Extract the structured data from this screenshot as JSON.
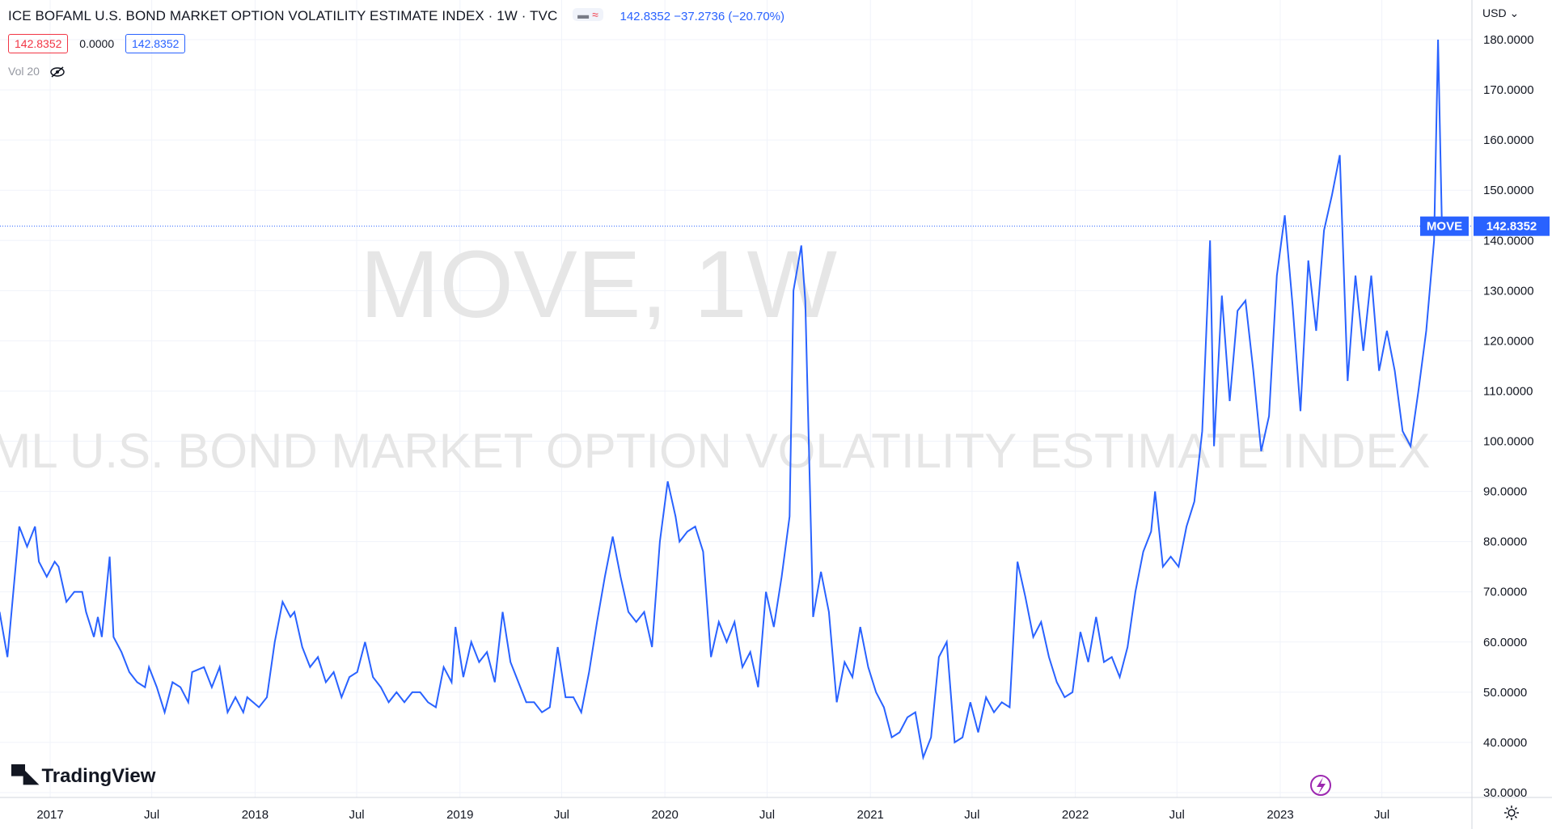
{
  "legend": {
    "title": "ICE BOFAML U.S. BOND MARKET OPTION VOLATILITY ESTIMATE INDEX · 1W · TVC",
    "change": "142.8352  −37.2736 (−20.70%)",
    "badge_red": "142.8352",
    "badge_zero": "0.0000",
    "badge_blue": "142.8352",
    "volume_label": "Vol 20"
  },
  "currency": "USD",
  "symbol": "MOVE",
  "last_price": "142.8352",
  "watermark": {
    "line1": "MOVE, 1W",
    "line2": "ICE BOFAML U.S. BOND MARKET OPTION VOLATILITY ESTIMATE INDEX"
  },
  "brand": "TradingView",
  "colors": {
    "line": "#2962ff",
    "badge_red": "#f23645",
    "grid": "#f0f3fa",
    "axis_text": "#131722"
  },
  "chart_data": {
    "type": "line",
    "title": "",
    "xlabel": "",
    "ylabel": "",
    "ylim": [
      30,
      183
    ],
    "grid": true,
    "y_ticks": [
      "180.0000",
      "170.0000",
      "160.0000",
      "150.0000",
      "140.0000",
      "130.0000",
      "120.0000",
      "110.0000",
      "100.0000",
      "90.0000",
      "80.0000",
      "70.0000",
      "60.0000",
      "50.0000",
      "40.0000",
      "30.0000"
    ],
    "x_ticks": [
      {
        "label": "2017",
        "date": "2017-01-01"
      },
      {
        "label": "Jul",
        "date": "2017-07-01"
      },
      {
        "label": "2018",
        "date": "2018-01-01"
      },
      {
        "label": "Jul",
        "date": "2018-07-01"
      },
      {
        "label": "2019",
        "date": "2019-01-01"
      },
      {
        "label": "Jul",
        "date": "2019-07-01"
      },
      {
        "label": "2020",
        "date": "2020-01-01"
      },
      {
        "label": "Jul",
        "date": "2020-07-01"
      },
      {
        "label": "2021",
        "date": "2021-01-01"
      },
      {
        "label": "Jul",
        "date": "2021-07-01"
      },
      {
        "label": "2022",
        "date": "2022-01-01"
      },
      {
        "label": "Jul",
        "date": "2022-07-01"
      },
      {
        "label": "2023",
        "date": "2023-01-01"
      },
      {
        "label": "Jul",
        "date": "2023-07-01"
      }
    ],
    "series": [
      {
        "color": "#2962ff",
        "points": [
          [
            "2016-10-03",
            66
          ],
          [
            "2016-10-17",
            57
          ],
          [
            "2016-11-07",
            83
          ],
          [
            "2016-11-21",
            79
          ],
          [
            "2016-12-05",
            83
          ],
          [
            "2016-12-12",
            76
          ],
          [
            "2016-12-26",
            73
          ],
          [
            "2017-01-09",
            76
          ],
          [
            "2017-01-16",
            75
          ],
          [
            "2017-01-30",
            68
          ],
          [
            "2017-02-13",
            70
          ],
          [
            "2017-02-27",
            70
          ],
          [
            "2017-03-06",
            66
          ],
          [
            "2017-03-20",
            61
          ],
          [
            "2017-03-27",
            65
          ],
          [
            "2017-04-03",
            61
          ],
          [
            "2017-04-17",
            77
          ],
          [
            "2017-04-24",
            61
          ],
          [
            "2017-05-08",
            58
          ],
          [
            "2017-05-22",
            54
          ],
          [
            "2017-06-05",
            52
          ],
          [
            "2017-06-19",
            51
          ],
          [
            "2017-06-26",
            55
          ],
          [
            "2017-07-10",
            51
          ],
          [
            "2017-07-24",
            46
          ],
          [
            "2017-08-07",
            52
          ],
          [
            "2017-08-21",
            51
          ],
          [
            "2017-09-04",
            48
          ],
          [
            "2017-09-11",
            54
          ],
          [
            "2017-10-02",
            55
          ],
          [
            "2017-10-16",
            51
          ],
          [
            "2017-10-30",
            55
          ],
          [
            "2017-11-13",
            46
          ],
          [
            "2017-11-27",
            49
          ],
          [
            "2017-12-11",
            46
          ],
          [
            "2017-12-18",
            49
          ],
          [
            "2018-01-08",
            47
          ],
          [
            "2018-01-22",
            49
          ],
          [
            "2018-02-05",
            60
          ],
          [
            "2018-02-19",
            68
          ],
          [
            "2018-03-05",
            65
          ],
          [
            "2018-03-12",
            66
          ],
          [
            "2018-03-26",
            59
          ],
          [
            "2018-04-09",
            55
          ],
          [
            "2018-04-23",
            57
          ],
          [
            "2018-05-07",
            52
          ],
          [
            "2018-05-21",
            54
          ],
          [
            "2018-06-04",
            49
          ],
          [
            "2018-06-18",
            53
          ],
          [
            "2018-07-02",
            54
          ],
          [
            "2018-07-16",
            60
          ],
          [
            "2018-07-30",
            53
          ],
          [
            "2018-08-13",
            51
          ],
          [
            "2018-08-27",
            48
          ],
          [
            "2018-09-10",
            50
          ],
          [
            "2018-09-24",
            48
          ],
          [
            "2018-10-08",
            50
          ],
          [
            "2018-10-22",
            50
          ],
          [
            "2018-11-05",
            48
          ],
          [
            "2018-11-19",
            47
          ],
          [
            "2018-12-03",
            55
          ],
          [
            "2018-12-17",
            52
          ],
          [
            "2018-12-24",
            63
          ],
          [
            "2019-01-07",
            53
          ],
          [
            "2019-01-21",
            60
          ],
          [
            "2019-02-04",
            56
          ],
          [
            "2019-02-18",
            58
          ],
          [
            "2019-03-04",
            52
          ],
          [
            "2019-03-18",
            66
          ],
          [
            "2019-04-01",
            56
          ],
          [
            "2019-04-15",
            52
          ],
          [
            "2019-04-29",
            48
          ],
          [
            "2019-05-13",
            48
          ],
          [
            "2019-05-27",
            46
          ],
          [
            "2019-06-10",
            47
          ],
          [
            "2019-06-24",
            59
          ],
          [
            "2019-07-08",
            49
          ],
          [
            "2019-07-22",
            49
          ],
          [
            "2019-08-05",
            46
          ],
          [
            "2019-08-19",
            54
          ],
          [
            "2019-09-02",
            64
          ],
          [
            "2019-09-16",
            73
          ],
          [
            "2019-09-30",
            81
          ],
          [
            "2019-10-14",
            73
          ],
          [
            "2019-10-28",
            66
          ],
          [
            "2019-11-11",
            64
          ],
          [
            "2019-11-25",
            66
          ],
          [
            "2019-12-09",
            59
          ],
          [
            "2019-12-23",
            80
          ],
          [
            "2020-01-06",
            92
          ],
          [
            "2020-01-20",
            85
          ],
          [
            "2020-01-27",
            80
          ],
          [
            "2020-02-10",
            82
          ],
          [
            "2020-02-24",
            83
          ],
          [
            "2020-03-09",
            78
          ],
          [
            "2020-03-23",
            57
          ],
          [
            "2020-04-06",
            64
          ],
          [
            "2020-04-20",
            60
          ],
          [
            "2020-05-04",
            64
          ],
          [
            "2020-05-18",
            55
          ],
          [
            "2020-06-01",
            58
          ],
          [
            "2020-06-15",
            51
          ],
          [
            "2020-06-29",
            70
          ],
          [
            "2020-07-13",
            63
          ],
          [
            "2020-07-27",
            73
          ],
          [
            "2020-08-10",
            85
          ],
          [
            "2020-08-17",
            130
          ],
          [
            "2020-08-31",
            139
          ],
          [
            "2020-09-07",
            128
          ],
          [
            "2020-09-21",
            65
          ],
          [
            "2020-10-05",
            74
          ],
          [
            "2020-10-19",
            66
          ],
          [
            "2020-11-02",
            48
          ],
          [
            "2020-11-16",
            56
          ],
          [
            "2020-11-30",
            53
          ],
          [
            "2020-12-14",
            63
          ],
          [
            "2020-12-28",
            55
          ],
          [
            "2021-01-11",
            50
          ],
          [
            "2021-01-25",
            47
          ],
          [
            "2021-02-08",
            41
          ],
          [
            "2021-02-22",
            42
          ],
          [
            "2021-03-08",
            45
          ],
          [
            "2021-03-22",
            46
          ],
          [
            "2021-04-05",
            37
          ],
          [
            "2021-04-19",
            41
          ],
          [
            "2021-05-03",
            57
          ],
          [
            "2021-05-17",
            60
          ],
          [
            "2021-05-31",
            40
          ],
          [
            "2021-06-14",
            41
          ],
          [
            "2021-06-28",
            48
          ],
          [
            "2021-07-12",
            42
          ],
          [
            "2021-07-26",
            49
          ],
          [
            "2021-08-09",
            46
          ],
          [
            "2021-08-23",
            48
          ],
          [
            "2021-09-06",
            47
          ],
          [
            "2021-09-20",
            76
          ],
          [
            "2021-10-04",
            69
          ],
          [
            "2021-10-18",
            61
          ],
          [
            "2021-11-01",
            64
          ],
          [
            "2021-11-15",
            57
          ],
          [
            "2021-11-29",
            52
          ],
          [
            "2021-12-13",
            49
          ],
          [
            "2021-12-27",
            50
          ],
          [
            "2022-01-10",
            62
          ],
          [
            "2022-01-24",
            56
          ],
          [
            "2022-02-07",
            65
          ],
          [
            "2022-02-21",
            56
          ],
          [
            "2022-03-07",
            57
          ],
          [
            "2022-03-21",
            53
          ],
          [
            "2022-04-04",
            59
          ],
          [
            "2022-04-18",
            70
          ],
          [
            "2022-05-02",
            78
          ],
          [
            "2022-05-16",
            82
          ],
          [
            "2022-05-23",
            90
          ],
          [
            "2022-06-06",
            75
          ],
          [
            "2022-06-20",
            77
          ],
          [
            "2022-07-04",
            75
          ],
          [
            "2022-07-18",
            83
          ],
          [
            "2022-08-01",
            88
          ],
          [
            "2022-08-15",
            102
          ],
          [
            "2022-08-29",
            140
          ],
          [
            "2022-09-05",
            99
          ],
          [
            "2022-09-19",
            129
          ],
          [
            "2022-10-03",
            108
          ],
          [
            "2022-10-17",
            126
          ],
          [
            "2022-10-31",
            128
          ],
          [
            "2022-11-14",
            114
          ],
          [
            "2022-11-28",
            98
          ],
          [
            "2022-12-12",
            105
          ],
          [
            "2022-12-26",
            133
          ],
          [
            "2023-01-09",
            145
          ],
          [
            "2023-01-23",
            127
          ],
          [
            "2023-02-06",
            106
          ],
          [
            "2023-02-20",
            136
          ],
          [
            "2023-03-06",
            122
          ],
          [
            "2023-03-20",
            142
          ],
          [
            "2023-04-03",
            149
          ],
          [
            "2023-04-17",
            157
          ],
          [
            "2023-05-01",
            112
          ],
          [
            "2023-05-15",
            133
          ],
          [
            "2023-05-29",
            118
          ],
          [
            "2023-06-12",
            133
          ],
          [
            "2023-06-26",
            114
          ],
          [
            "2023-07-10",
            122
          ],
          [
            "2023-07-24",
            114
          ],
          [
            "2023-08-07",
            102
          ],
          [
            "2023-08-21",
            99
          ],
          [
            "2023-09-04",
            110
          ],
          [
            "2023-09-18",
            122
          ],
          [
            "2023-10-02",
            140
          ],
          [
            "2023-10-09",
            180
          ],
          [
            "2023-10-16",
            142.8352
          ]
        ]
      }
    ]
  }
}
